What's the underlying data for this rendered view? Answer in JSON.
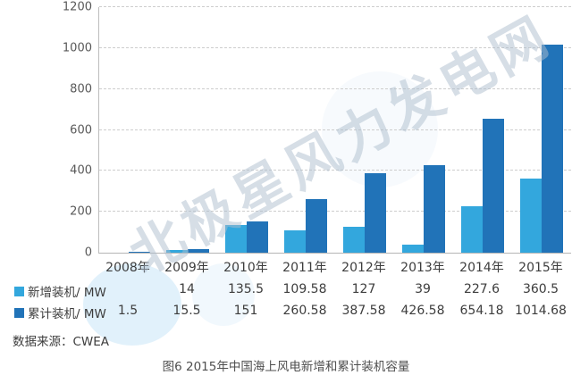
{
  "watermark": {
    "text": "北极星风力发电网"
  },
  "source": "数据来源：CWEA",
  "caption": "图6 2015年中国海上风电新增和累计装机容量",
  "colors": {
    "new": "#33a7dd",
    "cumulative": "#2173b8",
    "grid": "#cdcdcd",
    "axis": "#b5b5b5"
  },
  "chart_data": {
    "type": "bar",
    "title": "图6 2015年中国海上风电新增和累计装机容量",
    "categories": [
      "2008年",
      "2009年",
      "2010年",
      "2011年",
      "2012年",
      "2013年",
      "2014年",
      "2015年"
    ],
    "series": [
      {
        "name": "新增装机/ MW",
        "color_key": "new",
        "values": [
          null,
          14,
          135.5,
          109.58,
          127,
          39,
          227.6,
          360.5
        ],
        "labels": [
          "",
          "14",
          "135.5",
          "109.58",
          "127",
          "39",
          "227.6",
          "360.5"
        ]
      },
      {
        "name": "累计装机/ MW",
        "color_key": "cumulative",
        "values": [
          1.5,
          15.5,
          151,
          260.58,
          387.58,
          426.58,
          654.18,
          1014.68
        ],
        "labels": [
          "1.5",
          "15.5",
          "151",
          "260.58",
          "387.58",
          "426.58",
          "654.18",
          "1014.68"
        ]
      }
    ],
    "ylim": [
      0,
      1200
    ],
    "yticks": [
      0,
      200,
      400,
      600,
      800,
      1000,
      1200
    ],
    "grid": "horizontal-dashed",
    "legend_position": "left-of-table-rows"
  }
}
